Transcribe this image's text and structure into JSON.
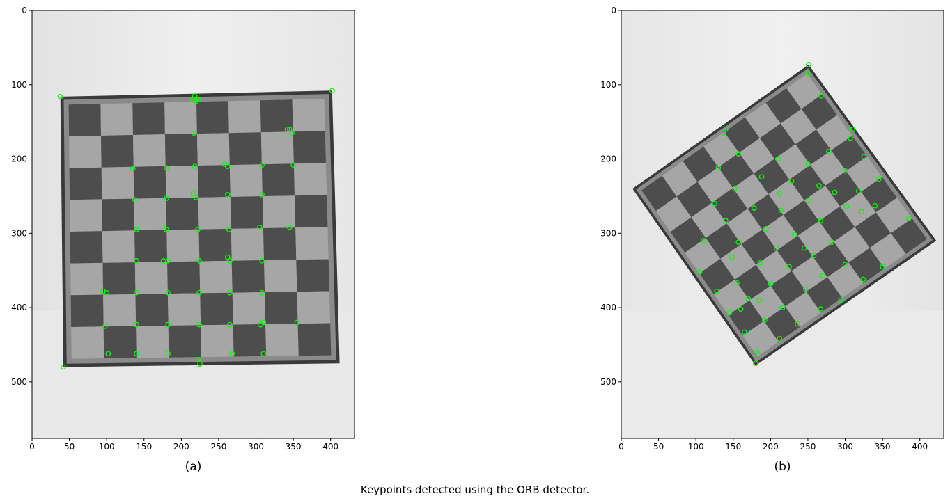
{
  "caption": "Keypoints detected using the ORB detector.",
  "colors": {
    "keypoint": "#00ff00",
    "board_dark": "#4d4d4d",
    "board_light": "#a6a6a6",
    "frame": "#3a3a3a",
    "background": "#ececec"
  },
  "panels": [
    {
      "id": "a",
      "label": "(a)",
      "xlim": [
        0,
        432
      ],
      "ylim": [
        0,
        576
      ],
      "x_ticks": [
        "0",
        "50",
        "100",
        "150",
        "200",
        "250",
        "300",
        "350",
        "400"
      ],
      "y_ticks": [
        "0",
        "100",
        "200",
        "300",
        "400",
        "500"
      ],
      "board_corners": [
        [
          38,
          116
        ],
        [
          402,
          108
        ],
        [
          412,
          475
        ],
        [
          42,
          480
        ]
      ],
      "keypoints": [
        [
          38,
          116
        ],
        [
          402,
          108
        ],
        [
          42,
          480
        ],
        [
          218,
          115
        ],
        [
          220,
          122
        ],
        [
          215,
          120
        ],
        [
          223,
          120
        ],
        [
          217,
          165
        ],
        [
          218,
          210
        ],
        [
          345,
          160
        ],
        [
          348,
          165
        ],
        [
          342,
          160
        ],
        [
          350,
          208
        ],
        [
          135,
          213
        ],
        [
          180,
          212
        ],
        [
          262,
          210
        ],
        [
          308,
          208
        ],
        [
          258,
          207
        ],
        [
          138,
          255
        ],
        [
          180,
          253
        ],
        [
          220,
          252
        ],
        [
          262,
          248
        ],
        [
          308,
          248
        ],
        [
          216,
          246
        ],
        [
          140,
          295
        ],
        [
          180,
          295
        ],
        [
          222,
          295
        ],
        [
          264,
          295
        ],
        [
          305,
          292
        ],
        [
          345,
          292
        ],
        [
          140,
          337
        ],
        [
          182,
          337
        ],
        [
          224,
          337
        ],
        [
          265,
          337
        ],
        [
          308,
          337
        ],
        [
          176,
          337
        ],
        [
          262,
          332
        ],
        [
          100,
          380
        ],
        [
          140,
          380
        ],
        [
          182,
          380
        ],
        [
          224,
          380
        ],
        [
          265,
          380
        ],
        [
          308,
          380
        ],
        [
          95,
          378
        ],
        [
          98,
          425
        ],
        [
          140,
          423
        ],
        [
          182,
          423
        ],
        [
          224,
          423
        ],
        [
          265,
          423
        ],
        [
          306,
          423
        ],
        [
          310,
          420
        ],
        [
          102,
          462
        ],
        [
          140,
          462
        ],
        [
          182,
          462
        ],
        [
          222,
          470
        ],
        [
          268,
          462
        ],
        [
          310,
          462
        ],
        [
          225,
          476
        ],
        [
          355,
          420
        ]
      ]
    },
    {
      "id": "b",
      "label": "(b)",
      "xlim": [
        0,
        432
      ],
      "ylim": [
        0,
        576
      ],
      "x_ticks": [
        "0",
        "50",
        "100",
        "150",
        "200",
        "250",
        "300",
        "350",
        "400"
      ],
      "y_ticks": [
        "0",
        "100",
        "200",
        "300",
        "400",
        "500"
      ],
      "board_corners": [
        [
          15,
          240
        ],
        [
          251,
          73
        ],
        [
          422,
          310
        ],
        [
          180,
          478
        ]
      ],
      "keypoints": [
        [
          251,
          73
        ],
        [
          250,
          85
        ],
        [
          268,
          115
        ],
        [
          140,
          160
        ],
        [
          137,
          165
        ],
        [
          130,
          212
        ],
        [
          157,
          193
        ],
        [
          210,
          200
        ],
        [
          250,
          207
        ],
        [
          278,
          190
        ],
        [
          307,
          172
        ],
        [
          310,
          160
        ],
        [
          325,
          197
        ],
        [
          152,
          240
        ],
        [
          188,
          224
        ],
        [
          212,
          247
        ],
        [
          228,
          230
        ],
        [
          265,
          236
        ],
        [
          300,
          216
        ],
        [
          318,
          243
        ],
        [
          345,
          227
        ],
        [
          125,
          260
        ],
        [
          140,
          283
        ],
        [
          178,
          266
        ],
        [
          214,
          269
        ],
        [
          251,
          256
        ],
        [
          286,
          245
        ],
        [
          322,
          271
        ],
        [
          385,
          280
        ],
        [
          110,
          310
        ],
        [
          157,
          312
        ],
        [
          194,
          294
        ],
        [
          232,
          302
        ],
        [
          267,
          283
        ],
        [
          302,
          264
        ],
        [
          340,
          263
        ],
        [
          105,
          352
        ],
        [
          148,
          332
        ],
        [
          186,
          340
        ],
        [
          208,
          320
        ],
        [
          245,
          320
        ],
        [
          258,
          330
        ],
        [
          282,
          312
        ],
        [
          300,
          342
        ],
        [
          324,
          362
        ],
        [
          350,
          345
        ],
        [
          128,
          378
        ],
        [
          155,
          367
        ],
        [
          170,
          388
        ],
        [
          200,
          368
        ],
        [
          225,
          345
        ],
        [
          247,
          375
        ],
        [
          270,
          357
        ],
        [
          294,
          390
        ],
        [
          145,
          407
        ],
        [
          165,
          433
        ],
        [
          192,
          417
        ],
        [
          216,
          400
        ],
        [
          236,
          422
        ],
        [
          267,
          402
        ],
        [
          180,
          475
        ],
        [
          182,
          460
        ],
        [
          212,
          442
        ],
        [
          160,
          402
        ],
        [
          185,
          390
        ]
      ]
    }
  ]
}
